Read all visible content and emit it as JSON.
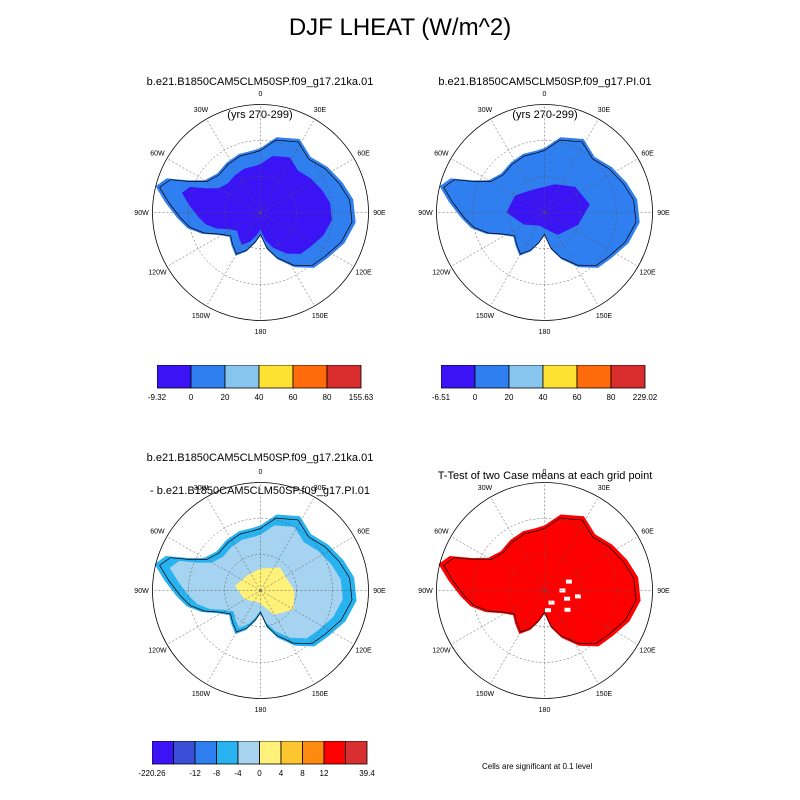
{
  "title": "DJF LHEAT (W/m^2)",
  "colors": {
    "c1": "#3b14f5",
    "c2": "#2f7ff0",
    "c3": "#87c5ef",
    "c4": "#fde234",
    "c5": "#ff6a0a",
    "c6": "#d92c2c",
    "d1": "#3b14f5",
    "d2": "#3a4ed8",
    "d3": "#2f7ff0",
    "d4": "#29b2f0",
    "d5": "#a6d3ef",
    "d6": "#fff17a",
    "d7": "#fdc630",
    "d8": "#ff8a10",
    "d9": "#ff0000",
    "d10": "#d83030",
    "significant": "#ff0000"
  },
  "panels": [
    {
      "title_line1": "b.e21.B1850CAM5CLM50SP.f09_g17.21ka.01",
      "title_line2": "(yrs 270-299)",
      "colorbar_labels": [
        "-9.32",
        "0",
        "20",
        "40",
        "60",
        "80",
        "155.63"
      ]
    },
    {
      "title_line1": "b.e21.B1850CAM5CLM50SP.f09_g17.PI.01",
      "title_line2": "(yrs 270-299)",
      "colorbar_labels": [
        "-6.51",
        "0",
        "20",
        "40",
        "60",
        "80",
        "229.02"
      ]
    },
    {
      "title_line1": "b.e21.B1850CAM5CLM50SP.f09_g17.21ka.01",
      "title_line2": "- b.e21.B1850CAM5CLM50SP.f09_g17.PI.01",
      "colorbar_labels": [
        "-220.26",
        "-12",
        "-8",
        "-4",
        "0",
        "4",
        "8",
        "12",
        "39.4"
      ]
    },
    {
      "title_line1": "T-Test of two Case means at each grid point"
    }
  ],
  "lon_labels": [
    "0",
    "30E",
    "60E",
    "90E",
    "120E",
    "150E",
    "180",
    "150W",
    "120W",
    "90W",
    "60W",
    "30W"
  ],
  "footnote": "Cells are significant at 0.1 level"
}
